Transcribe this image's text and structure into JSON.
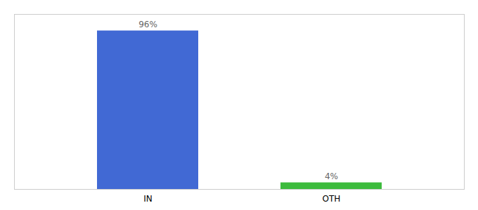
{
  "chart_data": {
    "type": "bar",
    "categories": [
      "IN",
      "OTH"
    ],
    "values": [
      96,
      4
    ],
    "value_labels": [
      "96%",
      "4%"
    ],
    "data_labels": true,
    "colors": [
      "#4169d4",
      "#3dbb3d"
    ],
    "ylim": [
      0,
      106
    ],
    "tick_labels": "x",
    "grid": false
  }
}
